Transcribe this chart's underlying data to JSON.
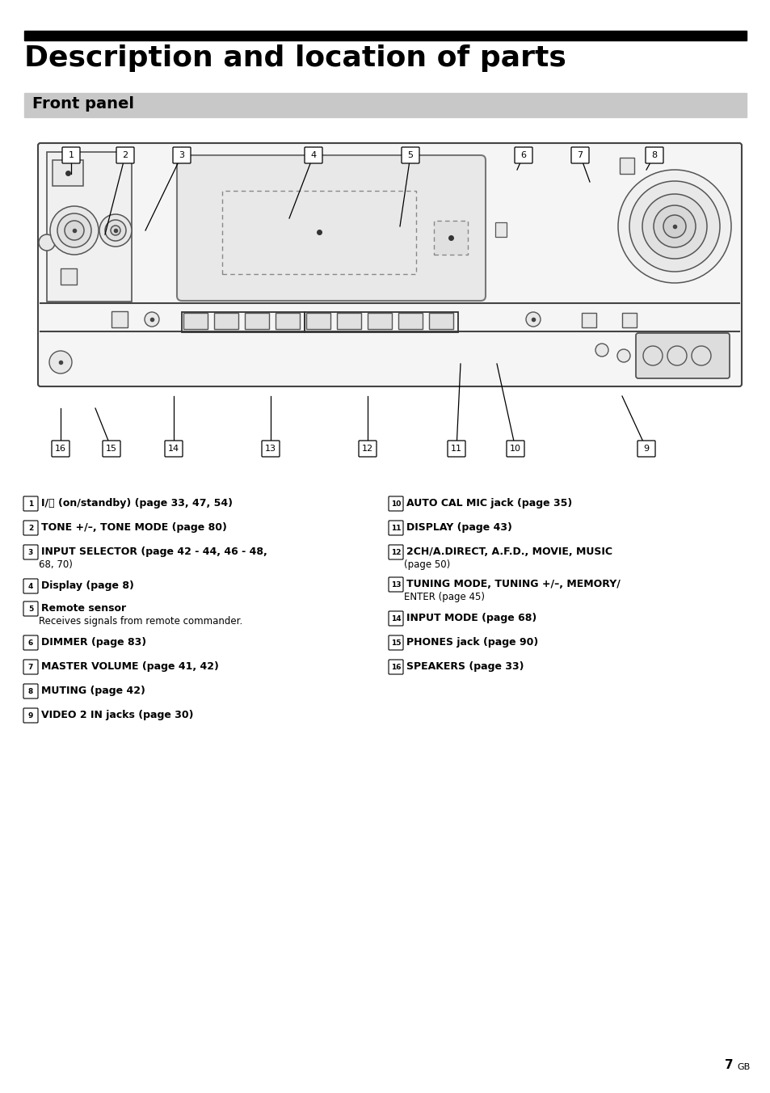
{
  "title": "Description and location of parts",
  "section": "Front panel",
  "bg_color": "#ffffff",
  "title_bar_color": "#000000",
  "section_bar_color": "#c8c8c8",
  "left_items": [
    [
      "1",
      "I/⏻ (on/standby) (page 33, 47, 54)",
      "",
      0
    ],
    [
      "2",
      "TONE +/–, TONE MODE (page 80)",
      "",
      32
    ],
    [
      "3",
      "INPUT SELECTOR (page 42 - 44, 46 - 48,",
      "    68, 70)",
      64
    ],
    [
      "4",
      "Display (page 8)",
      "",
      108
    ],
    [
      "5",
      "Remote sensor",
      "    Receives signals from remote commander.",
      140
    ],
    [
      "6",
      "DIMMER (page 83)",
      "",
      188
    ],
    [
      "7",
      "MASTER VOLUME (page 41, 42)",
      "",
      220
    ],
    [
      "8",
      "MUTING (page 42)",
      "",
      252
    ],
    [
      "9",
      "VIDEO 2 IN jacks (page 30)",
      "",
      284
    ]
  ],
  "right_items": [
    [
      "10",
      "AUTO CAL MIC jack (page 35)",
      "",
      0
    ],
    [
      "11",
      "DISPLAY (page 43)",
      "",
      32
    ],
    [
      "12",
      "2CH/A.DIRECT, A.F.D., MOVIE, MUSIC",
      "    (page 50)",
      64
    ],
    [
      "13",
      "TUNING MODE, TUNING +/–, MEMORY/",
      "    ENTER (page 45)",
      104
    ],
    [
      "14",
      "INPUT MODE (page 68)",
      "",
      148
    ],
    [
      "15",
      "PHONES jack (page 90)",
      "",
      180
    ],
    [
      "16",
      "SPEAKERS (page 33)",
      "",
      212
    ]
  ],
  "page_number": "7",
  "page_suffix": "GB"
}
